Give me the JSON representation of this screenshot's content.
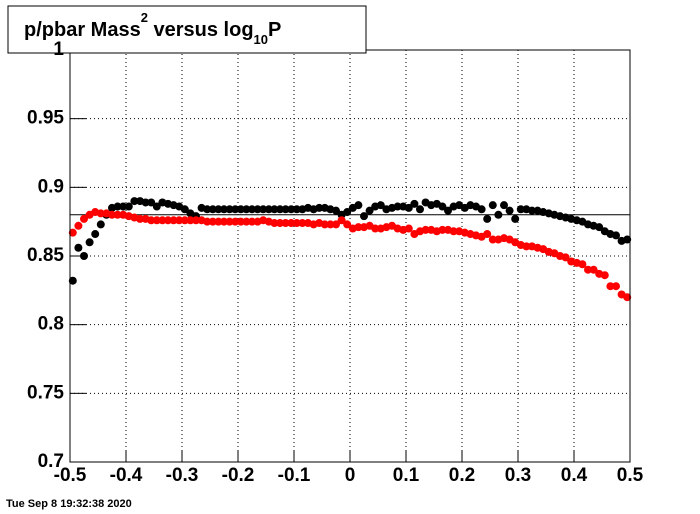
{
  "chart_data": {
    "type": "scatter",
    "title": [
      "p/pbar Mass",
      "2",
      " versus log",
      "10",
      "P"
    ],
    "footer": "Tue Sep  8 19:32:38 2020",
    "xlim": [
      -0.5,
      0.5
    ],
    "xticks": [
      -0.5,
      -0.4,
      -0.3,
      -0.2,
      -0.1,
      0,
      0.1,
      0.2,
      0.3,
      0.4,
      0.5
    ],
    "ylim": [
      0.7,
      1
    ],
    "yticks": [
      0.7,
      0.75,
      0.8,
      0.85,
      0.9,
      0.95,
      1
    ],
    "grid": true,
    "hline": 0.88,
    "x": [
      -0.495,
      -0.485,
      -0.475,
      -0.465,
      -0.455,
      -0.445,
      -0.435,
      -0.425,
      -0.415,
      -0.405,
      -0.395,
      -0.385,
      -0.375,
      -0.365,
      -0.355,
      -0.345,
      -0.335,
      -0.325,
      -0.315,
      -0.305,
      -0.295,
      -0.285,
      -0.275,
      -0.265,
      -0.255,
      -0.245,
      -0.235,
      -0.225,
      -0.215,
      -0.205,
      -0.195,
      -0.185,
      -0.175,
      -0.165,
      -0.155,
      -0.145,
      -0.135,
      -0.125,
      -0.115,
      -0.105,
      -0.095,
      -0.085,
      -0.075,
      -0.065,
      -0.055,
      -0.045,
      -0.035,
      -0.025,
      -0.015,
      -0.005,
      0.005,
      0.015,
      0.025,
      0.035,
      0.045,
      0.055,
      0.065,
      0.075,
      0.085,
      0.095,
      0.105,
      0.115,
      0.125,
      0.135,
      0.145,
      0.155,
      0.165,
      0.175,
      0.185,
      0.195,
      0.205,
      0.215,
      0.225,
      0.235,
      0.245,
      0.255,
      0.265,
      0.275,
      0.285,
      0.295,
      0.305,
      0.315,
      0.325,
      0.335,
      0.345,
      0.355,
      0.365,
      0.375,
      0.385,
      0.395,
      0.405,
      0.415,
      0.425,
      0.435,
      0.445,
      0.455,
      0.465,
      0.475,
      0.485,
      0.495
    ],
    "series": [
      {
        "color": "#000000",
        "values": [
          0.832,
          0.856,
          0.85,
          0.86,
          0.866,
          0.873,
          0.88,
          0.885,
          0.886,
          0.886,
          0.886,
          0.89,
          0.89,
          0.889,
          0.889,
          0.886,
          0.889,
          0.888,
          0.887,
          0.886,
          0.884,
          0.881,
          0.879,
          0.885,
          0.884,
          0.884,
          0.884,
          0.884,
          0.884,
          0.884,
          0.884,
          0.884,
          0.884,
          0.884,
          0.884,
          0.884,
          0.884,
          0.884,
          0.884,
          0.884,
          0.884,
          0.884,
          0.885,
          0.884,
          0.885,
          0.885,
          0.884,
          0.883,
          0.88,
          0.882,
          0.885,
          0.887,
          0.879,
          0.883,
          0.886,
          0.887,
          0.884,
          0.885,
          0.886,
          0.886,
          0.885,
          0.888,
          0.884,
          0.889,
          0.887,
          0.888,
          0.886,
          0.883,
          0.886,
          0.887,
          0.885,
          0.887,
          0.886,
          0.884,
          0.877,
          0.887,
          0.88,
          0.887,
          0.883,
          0.877,
          0.884,
          0.884,
          0.883,
          0.883,
          0.882,
          0.881,
          0.88,
          0.879,
          0.878,
          0.877,
          0.876,
          0.875,
          0.873,
          0.872,
          0.871,
          0.868,
          0.866,
          0.865,
          0.861,
          0.862
        ]
      },
      {
        "color": "#ff0000",
        "values": [
          0.867,
          0.872,
          0.877,
          0.88,
          0.882,
          0.881,
          0.881,
          0.88,
          0.88,
          0.88,
          0.879,
          0.878,
          0.877,
          0.877,
          0.876,
          0.876,
          0.876,
          0.876,
          0.876,
          0.876,
          0.876,
          0.876,
          0.876,
          0.876,
          0.875,
          0.875,
          0.875,
          0.875,
          0.875,
          0.875,
          0.875,
          0.875,
          0.875,
          0.875,
          0.876,
          0.875,
          0.874,
          0.874,
          0.874,
          0.874,
          0.874,
          0.874,
          0.874,
          0.873,
          0.874,
          0.873,
          0.873,
          0.873,
          0.876,
          0.873,
          0.87,
          0.871,
          0.871,
          0.872,
          0.87,
          0.87,
          0.871,
          0.872,
          0.87,
          0.869,
          0.87,
          0.866,
          0.868,
          0.869,
          0.869,
          0.868,
          0.869,
          0.869,
          0.868,
          0.868,
          0.867,
          0.866,
          0.865,
          0.864,
          0.866,
          0.862,
          0.862,
          0.863,
          0.862,
          0.86,
          0.858,
          0.857,
          0.857,
          0.856,
          0.855,
          0.853,
          0.852,
          0.85,
          0.849,
          0.846,
          0.845,
          0.844,
          0.84,
          0.84,
          0.837,
          0.836,
          0.828,
          0.828,
          0.822,
          0.82
        ]
      }
    ]
  }
}
